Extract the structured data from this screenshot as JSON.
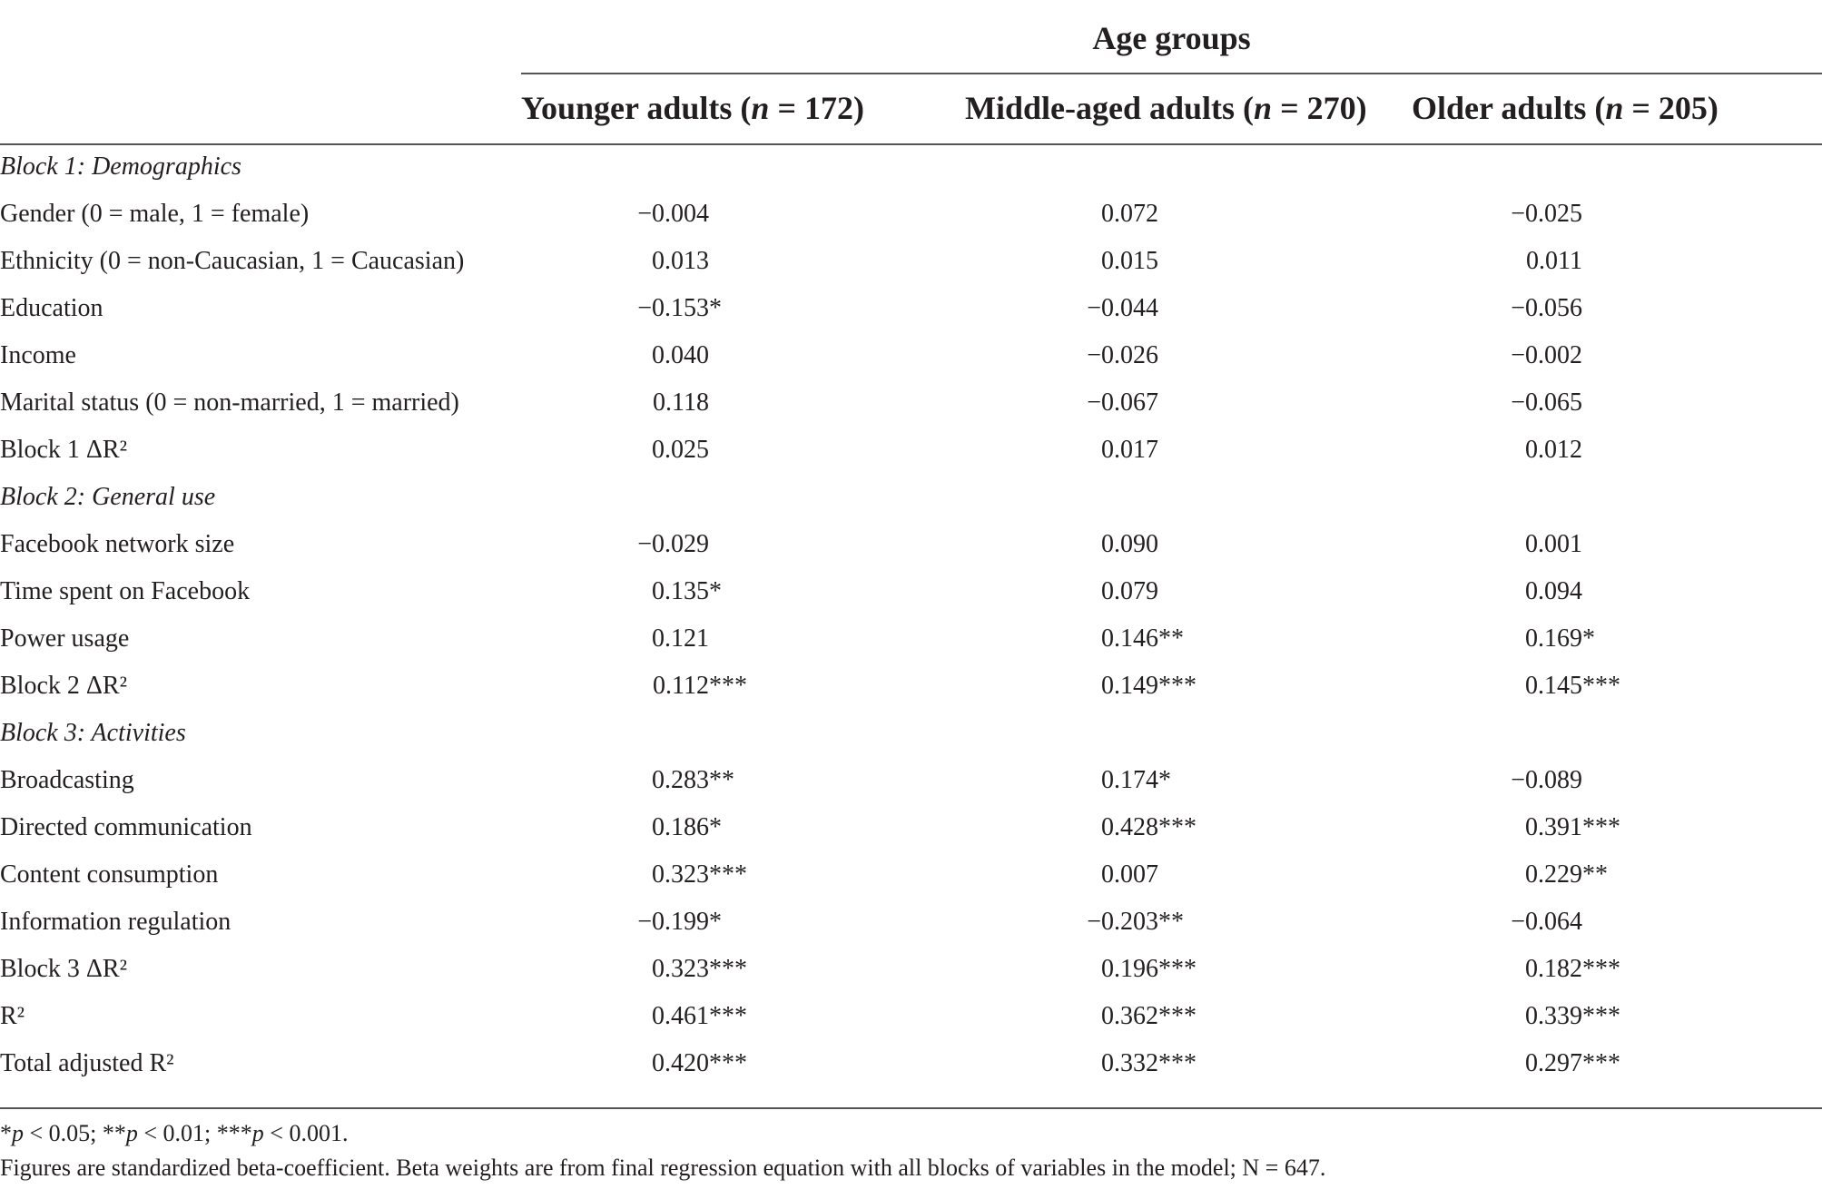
{
  "table": {
    "group_title": "Age groups",
    "columns": [
      {
        "label": "Younger adults",
        "n_var": "n",
        "n_eq": " = 172"
      },
      {
        "label": "Middle-aged adults",
        "n_var": "n",
        "n_eq": " = 270"
      },
      {
        "label": "Older adults",
        "n_var": "n",
        "n_eq": " = 205"
      }
    ],
    "rows": [
      {
        "kind": "section",
        "label": "Block 1: Demographics",
        "values": [
          "",
          "",
          ""
        ]
      },
      {
        "kind": "data",
        "label": "Gender (0 = male, 1 = female)",
        "values": [
          "−0.004",
          "0.072",
          "−0.025"
        ]
      },
      {
        "kind": "data",
        "label": "Ethnicity (0 = non-Caucasian, 1 = Caucasian)",
        "values": [
          "0.013",
          "0.015",
          "0.011"
        ]
      },
      {
        "kind": "data",
        "label": "Education",
        "values": [
          "−0.153*",
          "−0.044",
          "−0.056"
        ]
      },
      {
        "kind": "data",
        "label": "Income",
        "values": [
          "0.040",
          "−0.026",
          "−0.002"
        ]
      },
      {
        "kind": "data",
        "label": "Marital status (0 = non-married, 1 = married)",
        "values": [
          "0.118",
          "−0.067",
          "−0.065"
        ]
      },
      {
        "kind": "data",
        "label": "Block 1 ΔR²",
        "values": [
          "0.025",
          "0.017",
          "0.012"
        ]
      },
      {
        "kind": "section",
        "label": "Block 2: General use",
        "values": [
          "",
          "",
          ""
        ]
      },
      {
        "kind": "data",
        "label": "Facebook network size",
        "values": [
          "−0.029",
          "0.090",
          "0.001"
        ]
      },
      {
        "kind": "data",
        "label": "Time spent on Facebook",
        "values": [
          "0.135*",
          "0.079",
          "0.094"
        ]
      },
      {
        "kind": "data",
        "label": "Power usage",
        "values": [
          "0.121",
          "0.146**",
          "0.169*"
        ]
      },
      {
        "kind": "data",
        "label": "Block 2 ΔR²",
        "values": [
          "0.112***",
          "0.149***",
          "0.145***"
        ]
      },
      {
        "kind": "section",
        "label": "Block 3: Activities",
        "values": [
          "",
          "",
          ""
        ]
      },
      {
        "kind": "data",
        "label": "Broadcasting",
        "values": [
          "0.283**",
          "0.174*",
          "−0.089"
        ]
      },
      {
        "kind": "data",
        "label": "Directed communication",
        "values": [
          "0.186*",
          "0.428***",
          "0.391***"
        ]
      },
      {
        "kind": "data",
        "label": "Content consumption",
        "values": [
          "0.323***",
          "0.007",
          "0.229**"
        ]
      },
      {
        "kind": "data",
        "label": "Information regulation",
        "values": [
          "−0.199*",
          "−0.203**",
          "−0.064"
        ]
      },
      {
        "kind": "data",
        "label": "Block 3 ΔR²",
        "values": [
          "0.323***",
          "0.196***",
          "0.182***"
        ]
      },
      {
        "kind": "data",
        "label": "R²",
        "values": [
          "0.461***",
          "0.362***",
          "0.339***"
        ]
      },
      {
        "kind": "data",
        "label": "Total adjusted R²",
        "values": [
          "0.420***",
          "0.332***",
          "0.297***"
        ]
      }
    ]
  },
  "footnotes": {
    "significance": "*p < 0.05; **p < 0.01; ***p < 0.001.",
    "description": "Figures are standardized beta-coefficient. Beta weights are from final regression equation with all blocks of variables in the model; N = 647."
  }
}
